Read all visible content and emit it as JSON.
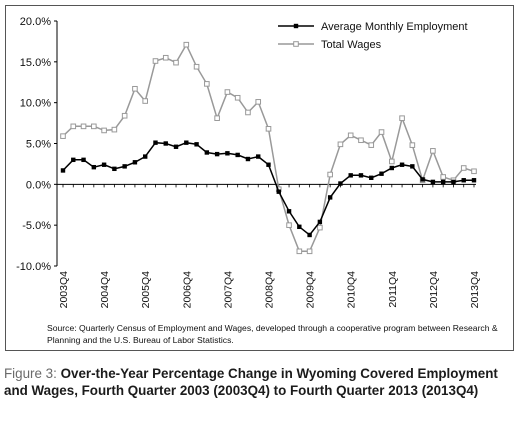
{
  "chart_data": {
    "type": "line",
    "source_note": "Source: Quarterly Census of Employment and Wages, developed through a cooperative program between Research & Planning and the U.S. Bureau of Labor Statistics.",
    "caption_label": "Figure 3:",
    "caption_title": "Over-the-Year Percentage Change in Wyoming Covered Employment and Wages, Fourth Quarter 2003 (2003Q4) to Fourth Quarter 2013 (2013Q4)",
    "ylim": [
      -10,
      20
    ],
    "yticks": [
      "20.0%",
      "15.0%",
      "10.0%",
      "5.0%",
      "0.0%",
      "-5.0%",
      "-10.0%"
    ],
    "ytick_values": [
      20,
      15,
      10,
      5,
      0,
      -5,
      -10
    ],
    "xtick_labels": [
      "2003Q4",
      "2004Q4",
      "2005Q4",
      "2006Q4",
      "2007Q4",
      "2008Q4",
      "2009Q4",
      "2010Q4",
      "2011Q4",
      "2012Q4",
      "2013Q4"
    ],
    "xtick_indices": [
      0,
      4,
      8,
      12,
      16,
      20,
      24,
      28,
      32,
      36,
      40
    ],
    "legend_position": "top-right",
    "grid": false,
    "series": [
      {
        "name": "Average Monthly Employment",
        "color": "#000000",
        "marker": "filled-square",
        "values": [
          1.7,
          3.0,
          3.0,
          2.1,
          2.4,
          1.9,
          2.2,
          2.7,
          3.4,
          5.1,
          5.0,
          4.6,
          5.1,
          4.9,
          3.9,
          3.7,
          3.8,
          3.6,
          3.1,
          3.4,
          2.4,
          -0.9,
          -3.3,
          -5.2,
          -6.2,
          -4.6,
          -1.6,
          0.1,
          1.1,
          1.1,
          0.8,
          1.3,
          2.0,
          2.4,
          2.2,
          0.6,
          0.3,
          0.3,
          0.3,
          0.5,
          0.5
        ]
      },
      {
        "name": "Total Wages",
        "color": "#999999",
        "marker": "open-square",
        "values": [
          5.9,
          7.1,
          7.1,
          7.1,
          6.6,
          6.7,
          8.4,
          11.7,
          10.2,
          15.1,
          15.5,
          14.9,
          17.1,
          14.4,
          12.3,
          8.1,
          11.3,
          10.6,
          8.8,
          10.1,
          6.8,
          -0.6,
          -5.0,
          -8.2,
          -8.2,
          -5.3,
          1.2,
          4.9,
          6.0,
          5.4,
          4.8,
          6.4,
          2.8,
          8.1,
          4.8,
          0.5,
          4.1,
          0.9,
          0.5,
          2.0,
          1.6
        ]
      }
    ]
  }
}
